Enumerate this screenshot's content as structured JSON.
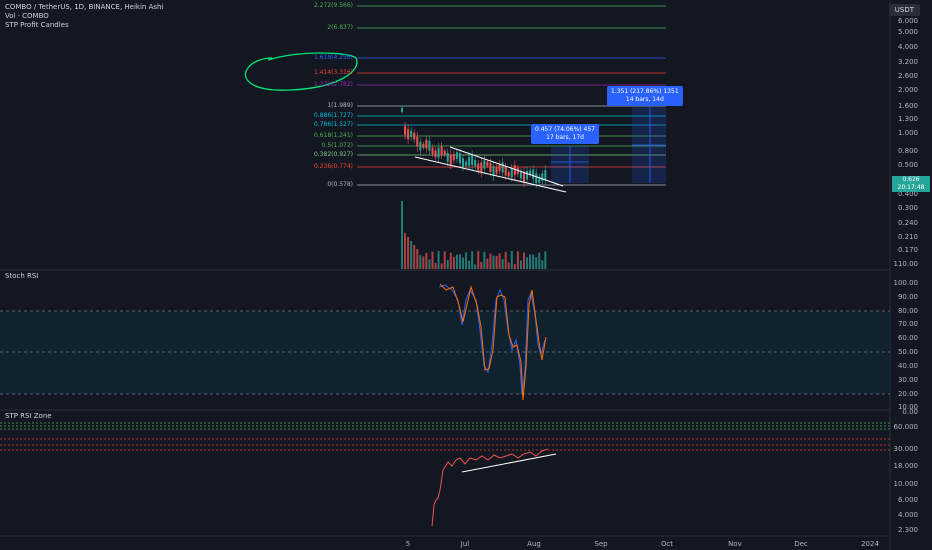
{
  "header": {
    "title_line": "COMBO / TetherUS, 1D, BINANCE, Heikin Ashi",
    "vol_line": "Vol · COMBO",
    "indicator_line": "STP Profit Candles"
  },
  "currency_button": "USDT",
  "current_price": {
    "value": "0.626",
    "countdown": "20:17:48"
  },
  "fib_levels": [
    {
      "label": "2.272(9.566)",
      "color": "#4caf50"
    },
    {
      "label": "2(6.837)",
      "color": "#4caf50"
    },
    {
      "label": "1.618(4.256)",
      "color": "#2962ff"
    },
    {
      "label": "1.414(3.316)",
      "color": "#f44336"
    },
    {
      "label": "1.272(2.782)",
      "color": "#9c27b0"
    },
    {
      "label": "1(1.989)",
      "color": "#b2b5be"
    },
    {
      "label": "0.886(1.727)",
      "color": "#00bcd4"
    },
    {
      "label": "0.786(1.527)",
      "color": "#00bcd4"
    },
    {
      "label": "0.618(1.241)",
      "color": "#4caf50"
    },
    {
      "label": "0.5(1.072)",
      "color": "#4caf50"
    },
    {
      "label": "0.382(0.927)",
      "color": "#81c784"
    },
    {
      "label": "0.236(0.774)",
      "color": "#f44336"
    },
    {
      "label": "0(0.578)",
      "color": "#b2b5be"
    }
  ],
  "price_axis": [
    "6.000",
    "5.000",
    "4.000",
    "3.200",
    "2.600",
    "2.000",
    "1.600",
    "1.300",
    "1.000",
    "0.800",
    "0.500",
    "0.400",
    "0.300",
    "0.240",
    "0.210",
    "0.170",
    "110.00"
  ],
  "callouts": [
    {
      "line1": "0.457 (74.06%) 457",
      "line2": "17 bars, 17d"
    },
    {
      "line1": "1.351 (217.86%) 1351",
      "line2": "14 bars, 14d"
    }
  ],
  "stoch": {
    "label": "Stoch RSI",
    "axis": [
      "100.00",
      "90.00",
      "80.00",
      "70.00",
      "60.00",
      "50.00",
      "40.00",
      "30.00",
      "20.00",
      "10.00"
    ]
  },
  "stp": {
    "label": "STP RSI Zone",
    "axis": [
      "0.00",
      "60.000",
      "30.000",
      "18.000",
      "10.000",
      "6.000",
      "4.000",
      "2.300"
    ]
  },
  "time_axis": [
    "5",
    "Jul",
    "Aug",
    "Sep",
    "Oct",
    "Nov",
    "Dec",
    "2024"
  ],
  "colors": {
    "background": "#131722",
    "up": "#26a69a",
    "down": "#ef5350",
    "callout": "#2962ff",
    "highlight": "#00e676"
  }
}
